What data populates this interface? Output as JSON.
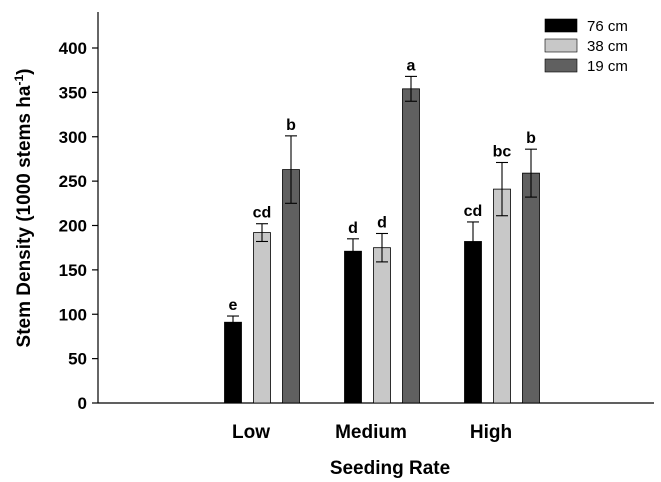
{
  "chart_data": {
    "type": "bar",
    "xlabel": "Seeding Rate",
    "ylabel_main": "Stem Density (1000 stems ha",
    "ylabel_sup": "-1",
    "ylabel_close": ")",
    "ylim": [
      0,
      450
    ],
    "yticks": [
      0,
      50,
      100,
      150,
      200,
      250,
      300,
      350,
      400
    ],
    "categories": [
      "Low",
      "Medium",
      "High"
    ],
    "legend_position": "top-right",
    "series": [
      {
        "name": "76 cm",
        "color": "#000000",
        "values": [
          91,
          171,
          182
        ],
        "errors": [
          7,
          14,
          22
        ],
        "labels": [
          "e",
          "d",
          "cd"
        ]
      },
      {
        "name": "38 cm",
        "color": "#c8c8c8",
        "values": [
          192,
          175,
          241
        ],
        "errors": [
          10,
          16,
          30
        ],
        "labels": [
          "cd",
          "d",
          "bc"
        ]
      },
      {
        "name": "19 cm",
        "color": "#606060",
        "values": [
          263,
          354,
          259
        ],
        "errors": [
          38,
          14,
          27
        ],
        "labels": [
          "b",
          "a",
          "b"
        ]
      }
    ]
  }
}
